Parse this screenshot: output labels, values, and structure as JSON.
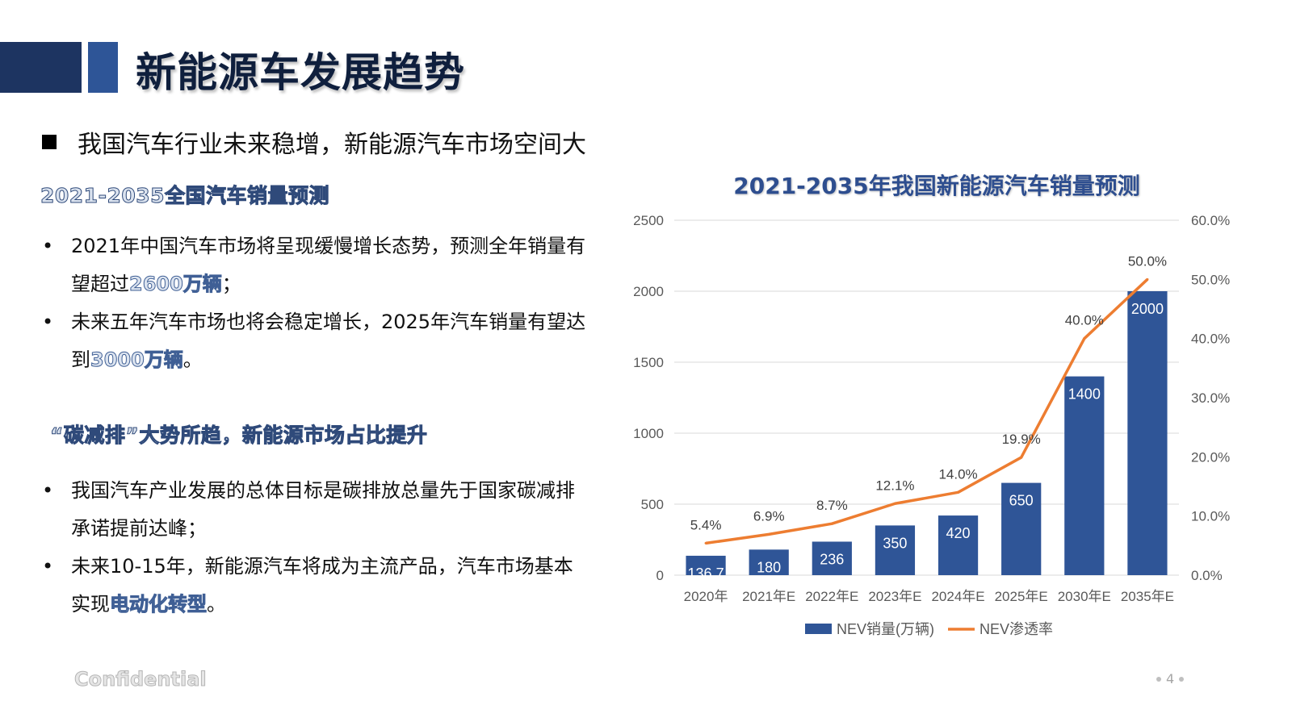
{
  "page": {
    "title": "新能源车发展趋势",
    "subtitle": "我国汽车行业未来稳增，新能源汽车市场空间大",
    "confidential": "Confidential",
    "page_number": "4"
  },
  "section1": {
    "heading": "2021-2035全国汽车销量预测",
    "bullets": [
      {
        "text": "2021年中国汽车市场将呈现缓慢增长态势，预测全年销量有望超过",
        "highlight": "2600万辆",
        "tail": "；"
      },
      {
        "text": "未来五年汽车市场也将会稳定增长，2025年汽车销量有望达到",
        "highlight": "3000万辆",
        "tail": "。"
      }
    ]
  },
  "section2": {
    "heading": "“碳减排”大势所趋，新能源市场占比提升",
    "bullets": [
      {
        "text": "我国汽车产业发展的总体目标是碳排放总量先于国家碳减排承诺提前达峰；",
        "highlight": "",
        "tail": ""
      },
      {
        "text": "未来10-15年，新能源汽车将成为主流产品，汽车市场基本实现",
        "highlight": "电动化转型",
        "tail": "。"
      }
    ]
  },
  "bullet_char": "•",
  "colors": {
    "bar": "#2f5597",
    "line": "#ed7d31",
    "title_dark": "#1d3461"
  },
  "chart_data": {
    "type": "bar",
    "title": "2021-2035年我国新能源汽车销量预测",
    "categories": [
      "2020年",
      "2021年E",
      "2022年E",
      "2023年E",
      "2024年E",
      "2025年E",
      "2030年E",
      "2035年E"
    ],
    "series": [
      {
        "name": "NEV销量(万辆)",
        "type": "bar",
        "axis": "left",
        "values": [
          136.7,
          180,
          236,
          350,
          420,
          650,
          1400,
          2000
        ],
        "labels": [
          "136.7",
          "180",
          "236",
          "350",
          "420",
          "650",
          "1400",
          "2000"
        ]
      },
      {
        "name": "NEV渗透率",
        "type": "line",
        "axis": "right",
        "values": [
          5.4,
          6.9,
          8.7,
          12.1,
          14.0,
          19.9,
          40.0,
          50.0
        ],
        "labels": [
          "5.4%",
          "6.9%",
          "8.7%",
          "12.1%",
          "14.0%",
          "19.9%",
          "40.0%",
          "50.0%"
        ]
      }
    ],
    "ylim": [
      0,
      2500
    ],
    "y_ticks": [
      "0",
      "500",
      "1000",
      "1500",
      "2000",
      "2500"
    ],
    "y2lim": [
      0,
      60
    ],
    "y2_ticks": [
      "0.0%",
      "10.0%",
      "20.0%",
      "30.0%",
      "40.0%",
      "50.0%",
      "60.0%"
    ],
    "grid": true,
    "legend": "bottom"
  }
}
